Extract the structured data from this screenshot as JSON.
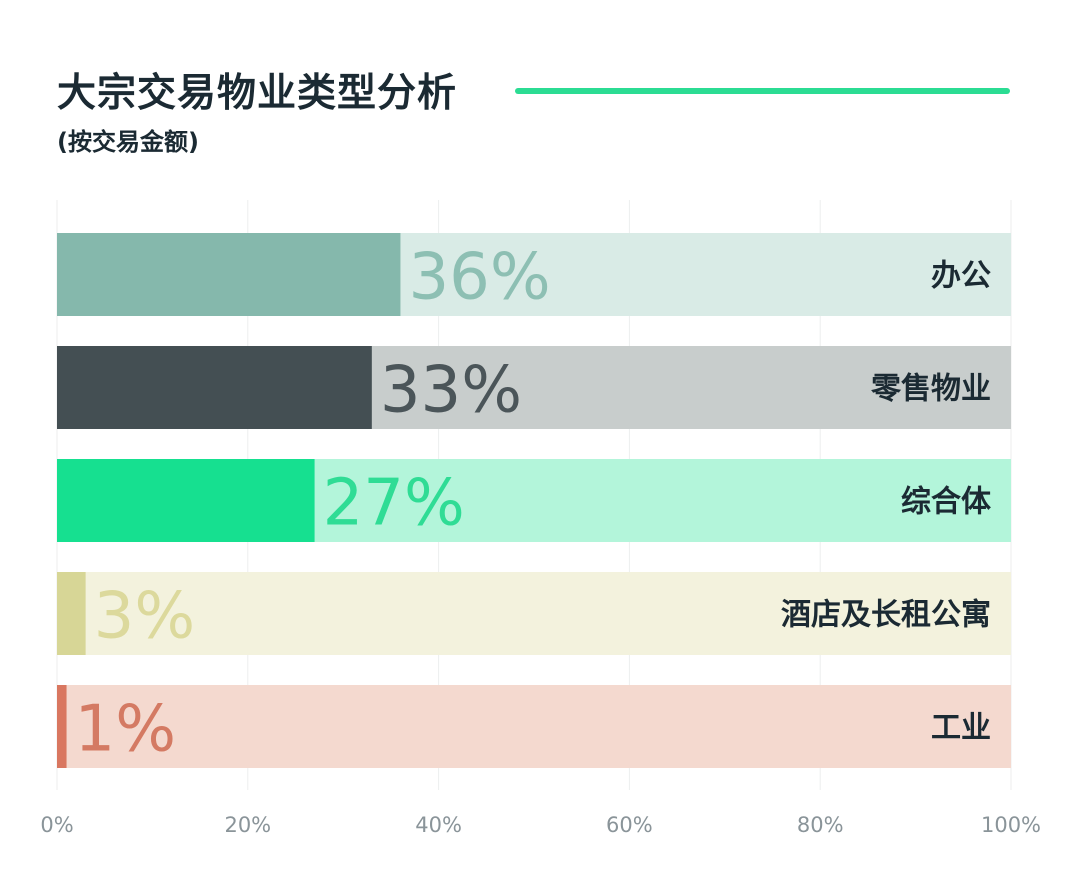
{
  "header": {
    "title": "大宗交易物业类型分析",
    "subtitle": "(按交易金额)",
    "accent_color": "#2bdc93"
  },
  "chart_data": {
    "type": "bar",
    "orientation": "horizontal",
    "stacked_to_100": true,
    "categories": [
      "办公",
      "零售物业",
      "综合体",
      "酒店及长租公寓",
      "工业"
    ],
    "values": [
      36,
      33,
      27,
      3,
      1
    ],
    "value_labels": [
      "36%",
      "33%",
      "27%",
      "3%",
      "1%"
    ],
    "xlim": [
      0,
      100
    ],
    "x_ticks": [
      0,
      20,
      40,
      60,
      80,
      100
    ],
    "x_tick_labels": [
      "0%",
      "20%",
      "40%",
      "60%",
      "80%",
      "100%"
    ],
    "grid": true,
    "colors": [
      {
        "bar": "#85b8ac",
        "track": "#d9ebe6",
        "label": "#8dbfb3"
      },
      {
        "bar": "#444f53",
        "track": "#c8cdcc",
        "label": "#4b5559"
      },
      {
        "bar": "#16e090",
        "track": "#b3f5da",
        "label": "#2fdc95"
      },
      {
        "bar": "#d7d696",
        "track": "#f3f2dd",
        "label": "#dcd99c"
      },
      {
        "bar": "#d97760",
        "track": "#f4d9cf",
        "label": "#d47a63"
      }
    ],
    "category_label_color": "#1b2a33",
    "tick_label_color": "#8a9499"
  }
}
